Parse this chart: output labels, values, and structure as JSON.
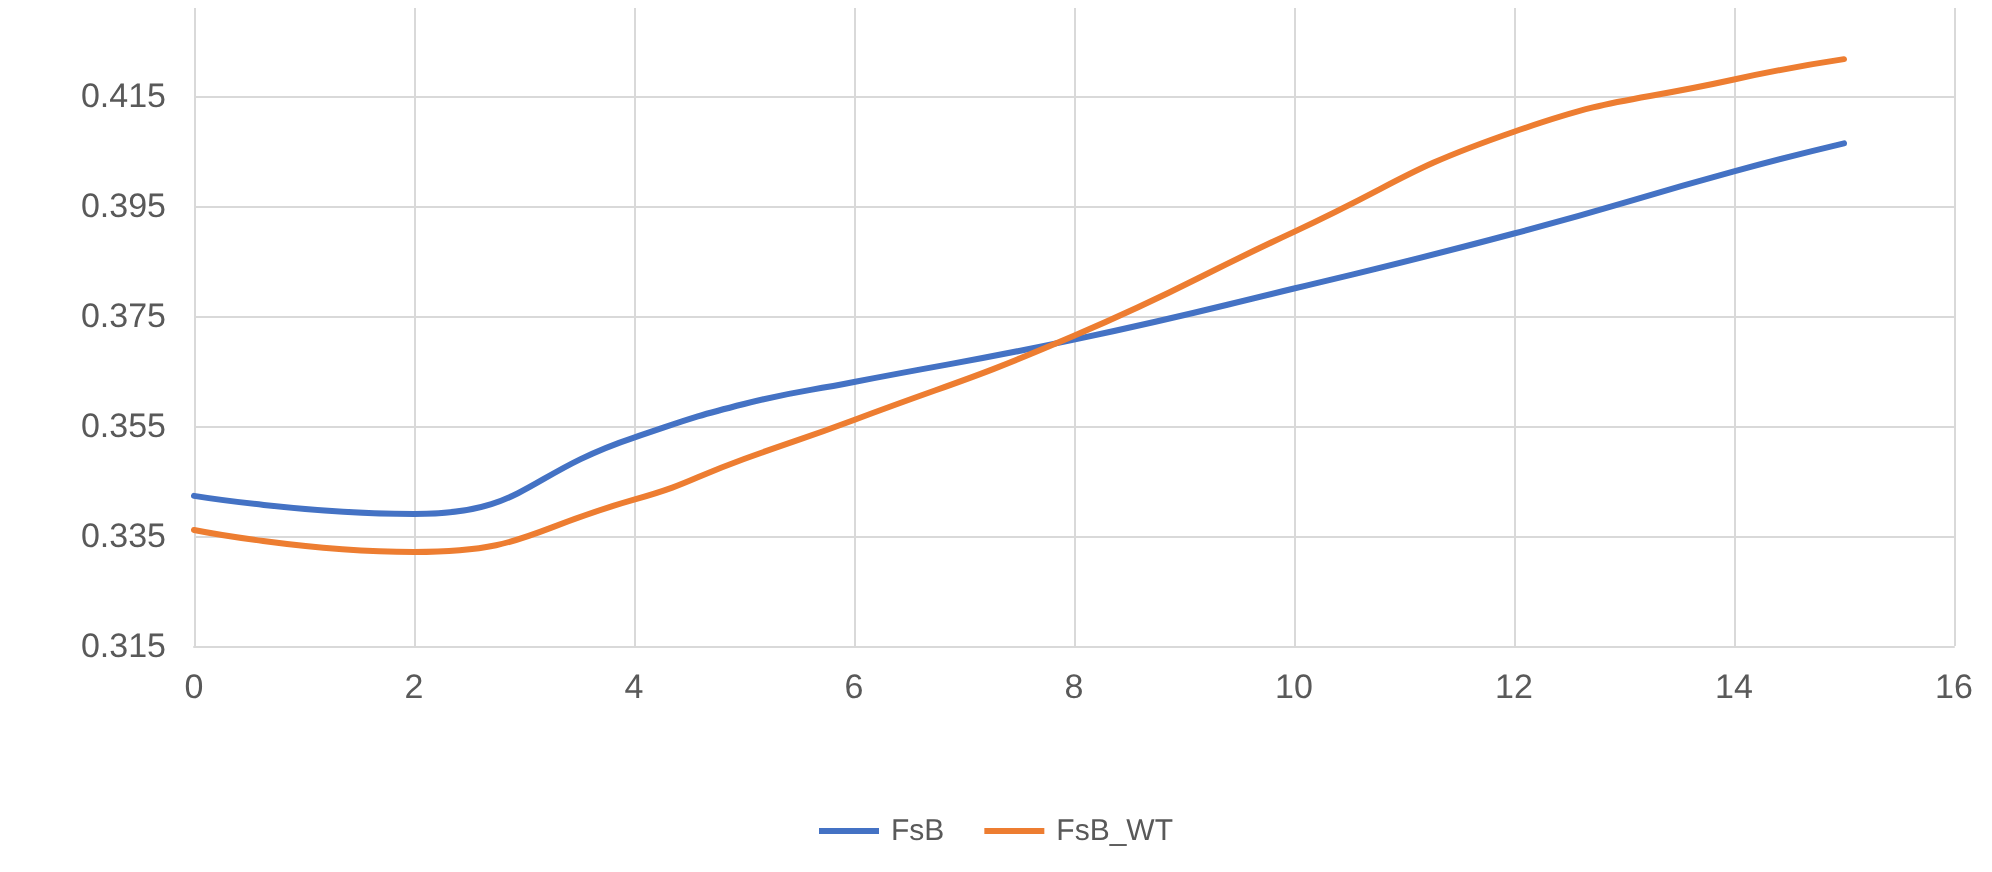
{
  "chart_data": {
    "type": "line",
    "x": [
      0,
      2,
      4,
      5,
      6,
      8,
      10,
      12,
      14,
      15
    ],
    "series": [
      {
        "name": "FsB",
        "color": "#4472c4",
        "values": [
          0.3423,
          0.339,
          0.3529,
          0.359,
          0.363,
          0.3707,
          0.38,
          0.39,
          0.4013,
          0.4064
        ]
      },
      {
        "name": "FsB_WT",
        "color": "#ed7d31",
        "values": [
          0.3361,
          0.3321,
          0.3416,
          0.349,
          0.3561,
          0.3714,
          0.3903,
          0.4085,
          0.418,
          0.4217
        ]
      }
    ],
    "xlim": [
      0,
      16
    ],
    "xticks": [
      0,
      2,
      4,
      6,
      8,
      10,
      12,
      14,
      16
    ],
    "ylim": [
      0.315,
      0.431
    ],
    "yticks": [
      0.315,
      0.335,
      0.355,
      0.375,
      0.395,
      0.415
    ],
    "grid": true,
    "legend": "bottom",
    "marker": "none",
    "line_style": "solid"
  }
}
